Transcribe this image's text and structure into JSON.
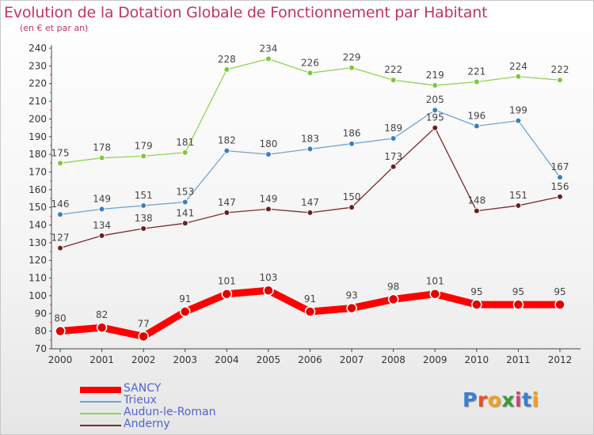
{
  "page": {
    "title": "Evolution de la Dotation Globale de Fonctionnement par Habitant",
    "subtitle": "(en € et par an)",
    "logo_text": "Proxiti"
  },
  "chart_data": {
    "type": "line",
    "title": "Evolution de la Dotation Globale de Fonctionnement par Habitant",
    "subtitle": "(en € et par an)",
    "xlabel": "",
    "ylabel": "",
    "categories": [
      "2000",
      "2001",
      "2002",
      "2003",
      "2004",
      "2005",
      "2006",
      "2007",
      "2008",
      "2009",
      "2010",
      "2011",
      "2012"
    ],
    "yticks": [
      70,
      80,
      90,
      100,
      110,
      120,
      130,
      140,
      150,
      160,
      170,
      180,
      190,
      200,
      210,
      220,
      230,
      240
    ],
    "ylim": [
      70,
      240
    ],
    "grid": false,
    "legend_position": "bottom-left",
    "series": [
      {
        "name": "SANCY",
        "color": "#ff0000",
        "marker": "#e00000",
        "emphasis": true,
        "values": [
          80,
          82,
          77,
          91,
          101,
          103,
          91,
          93,
          98,
          101,
          95,
          95,
          95
        ]
      },
      {
        "name": "Trieux",
        "color": "#6fa3d0",
        "marker": "#3a7fc0",
        "emphasis": false,
        "values": [
          146,
          149,
          151,
          153,
          182,
          180,
          183,
          186,
          189,
          205,
          196,
          199,
          167
        ]
      },
      {
        "name": "Audun-le-Roman",
        "color": "#8fd44f",
        "marker": "#7ec83a",
        "emphasis": false,
        "values": [
          175,
          178,
          179,
          181,
          228,
          234,
          226,
          229,
          222,
          219,
          221,
          224,
          222
        ]
      },
      {
        "name": "Anderny",
        "color": "#7a2a2a",
        "marker": "#6b1f1f",
        "emphasis": false,
        "values": [
          127,
          134,
          138,
          141,
          147,
          149,
          147,
          150,
          173,
          195,
          148,
          151,
          156
        ]
      }
    ]
  }
}
